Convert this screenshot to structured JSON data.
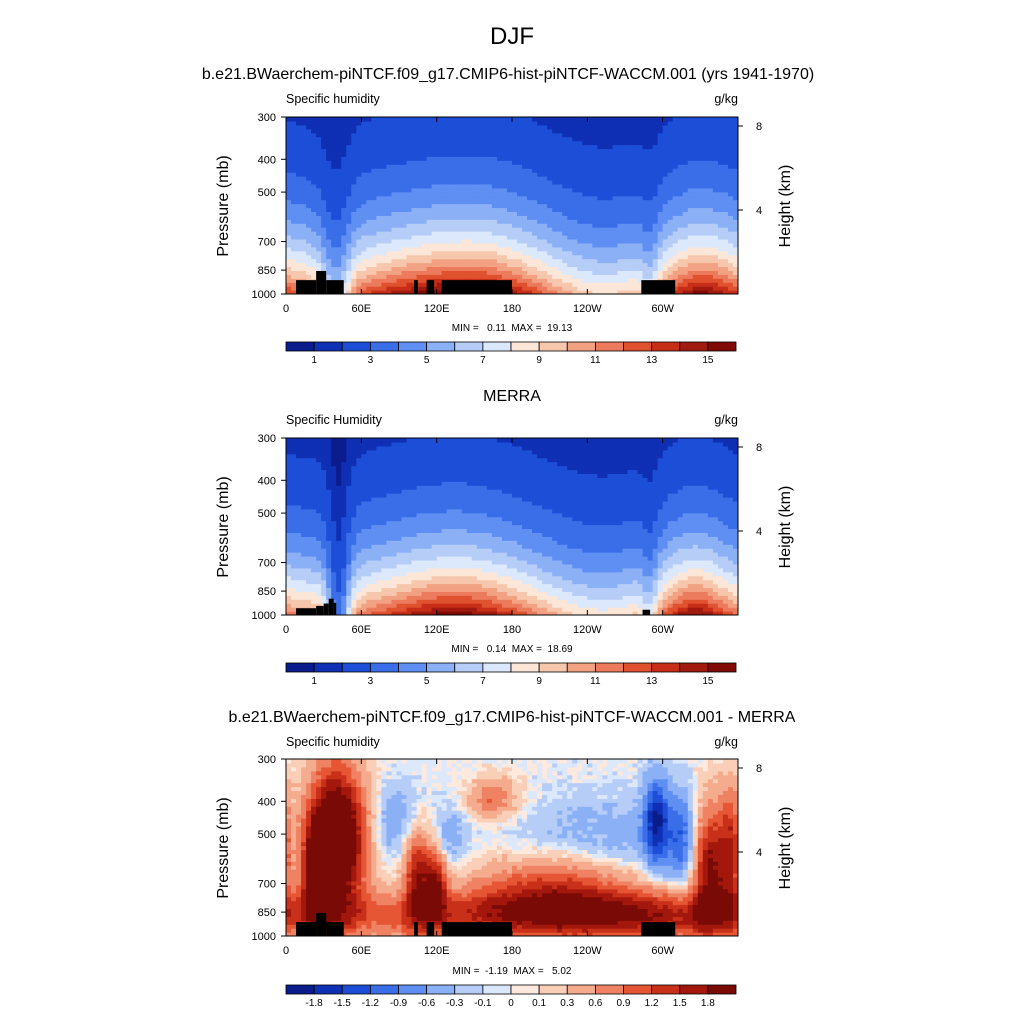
{
  "page_title": "DJF",
  "palettes": {
    "abs": [
      "#0b1d8c",
      "#0f2fb4",
      "#1c4ed8",
      "#3a6ee8",
      "#5f8ff2",
      "#8bb0f6",
      "#b6cdf8",
      "#dce8fb",
      "#fbe6d8",
      "#f7c7ad",
      "#f2a283",
      "#ec7a5c",
      "#e0512f",
      "#c62e18",
      "#a11a0f",
      "#7f0a06"
    ],
    "diff": [
      "#0b1d8c",
      "#0f2fb4",
      "#1c4ed8",
      "#3a6ee8",
      "#5f8ff2",
      "#8bb0f6",
      "#b6cdf8",
      "#dce8fb",
      "#fde9de",
      "#f9cfb8",
      "#f5ab8d",
      "#ef8263",
      "#e65635",
      "#c9301a",
      "#a3170c",
      "#7a0a06"
    ],
    "land": "#000000"
  },
  "chart_data": [
    {
      "type": "heatmap",
      "title": "b.e21.BWaerchem-piNTCF.f09_g17.CMIP6-hist-piNTCF-WACCM.001 (yrs 1941-1970)",
      "left_label": "Specific humidity",
      "right_label": "g/kg",
      "ylabel": "Pressure (mb)",
      "ylabel_right": "Height (km)",
      "x_ticks": [
        "0",
        "60E",
        "120E",
        "180",
        "120W",
        "60W"
      ],
      "x_tick_values": [
        0,
        60,
        120,
        180,
        240,
        300
      ],
      "xlim": [
        0,
        360
      ],
      "y_ticks": [
        "300",
        "400",
        "500",
        "700",
        "850",
        "1000"
      ],
      "y_tick_values": [
        300,
        400,
        500,
        700,
        850,
        1000
      ],
      "ylim": [
        1000,
        300
      ],
      "right_ticks": [
        "8",
        "4"
      ],
      "right_tick_values": [
        8,
        4
      ],
      "stats_text": "MIN =   0.11  MAX =  19.13",
      "min": 0.11,
      "max": 19.13,
      "colorbar_labels": [
        "1",
        "3",
        "5",
        "7",
        "9",
        "11",
        "13",
        "15"
      ],
      "colorbar_levels": [
        0.5,
        1,
        2,
        3,
        4,
        5,
        6,
        7,
        8,
        9,
        10,
        11,
        12,
        13,
        14,
        15
      ],
      "field": "abs",
      "dataset": "model"
    },
    {
      "type": "heatmap",
      "title": "MERRA",
      "left_label": "Specific Humidity",
      "right_label": "g/kg",
      "ylabel": "Pressure (mb)",
      "ylabel_right": "Height (km)",
      "x_ticks": [
        "0",
        "60E",
        "120E",
        "180",
        "120W",
        "60W"
      ],
      "x_tick_values": [
        0,
        60,
        120,
        180,
        240,
        300
      ],
      "xlim": [
        0,
        360
      ],
      "y_ticks": [
        "300",
        "400",
        "500",
        "700",
        "850",
        "1000"
      ],
      "y_tick_values": [
        300,
        400,
        500,
        700,
        850,
        1000
      ],
      "ylim": [
        1000,
        300
      ],
      "right_ticks": [
        "8",
        "4"
      ],
      "right_tick_values": [
        8,
        4
      ],
      "stats_text": "MIN =   0.14  MAX =  18.69",
      "min": 0.14,
      "max": 18.69,
      "colorbar_labels": [
        "1",
        "3",
        "5",
        "7",
        "9",
        "11",
        "13",
        "15"
      ],
      "colorbar_levels": [
        0.5,
        1,
        2,
        3,
        4,
        5,
        6,
        7,
        8,
        9,
        10,
        11,
        12,
        13,
        14,
        15
      ],
      "field": "abs",
      "dataset": "merra"
    },
    {
      "type": "heatmap",
      "title": "b.e21.BWaerchem-piNTCF.f09_g17.CMIP6-hist-piNTCF-WACCM.001 - MERRA",
      "left_label": "Specific humidity",
      "right_label": "g/kg",
      "ylabel": "Pressure (mb)",
      "ylabel_right": "Height (km)",
      "x_ticks": [
        "0",
        "60E",
        "120E",
        "180",
        "120W",
        "60W"
      ],
      "x_tick_values": [
        0,
        60,
        120,
        180,
        240,
        300
      ],
      "xlim": [
        0,
        360
      ],
      "y_ticks": [
        "300",
        "400",
        "500",
        "700",
        "850",
        "1000"
      ],
      "y_tick_values": [
        300,
        400,
        500,
        700,
        850,
        1000
      ],
      "ylim": [
        1000,
        300
      ],
      "right_ticks": [
        "8",
        "4"
      ],
      "right_tick_values": [
        8,
        4
      ],
      "stats_text": "MIN =  -1.19  MAX =   5.02",
      "min": -1.19,
      "max": 5.02,
      "colorbar_labels": [
        "-1.8",
        "-1.5",
        "-1.2",
        "-0.9",
        "-0.6",
        "-0.3",
        "-0.1",
        "0",
        "0.1",
        "0.3",
        "0.6",
        "0.9",
        "1.2",
        "1.5",
        "1.8"
      ],
      "colorbar_levels": [
        -1.8,
        -1.5,
        -1.2,
        -0.9,
        -0.6,
        -0.3,
        -0.1,
        0,
        0.1,
        0.3,
        0.6,
        0.9,
        1.2,
        1.5,
        1.8
      ],
      "field": "diff",
      "dataset": "diff"
    }
  ]
}
